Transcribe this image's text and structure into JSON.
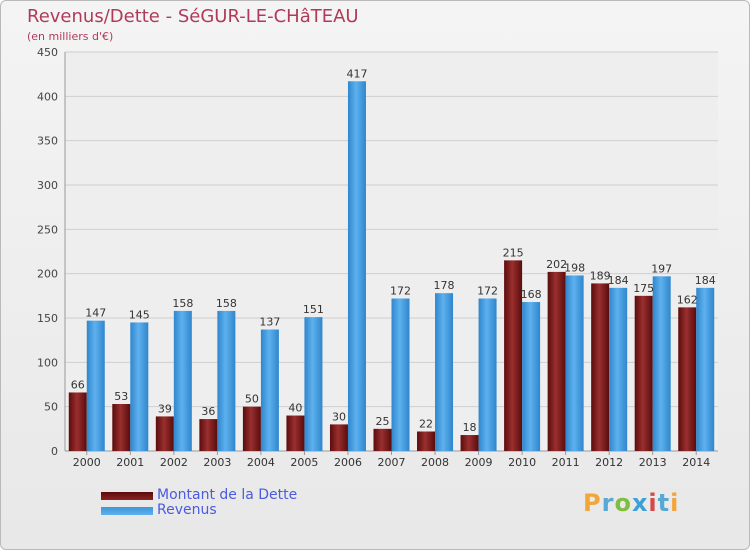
{
  "header": {
    "title": "Revenus/Dette - SéGUR-LE-CHâTEAU",
    "subtitle": "(en milliers d'€)"
  },
  "legend": {
    "dette_label": "Montant de la Dette",
    "revenus_label": "Revenus"
  },
  "colors": {
    "dette": "#7a1a1a",
    "revenus": "#4a9fdf",
    "title": "#b03a5b",
    "legend_text": "#4a5be0"
  },
  "logo": {
    "letters": [
      "P",
      "r",
      "o",
      "x",
      "i",
      "t",
      "i"
    ]
  },
  "chart_data": {
    "type": "bar",
    "title": "Revenus/Dette - SéGUR-LE-CHâTEAU",
    "subtitle": "(en milliers d'€)",
    "xlabel": "",
    "ylabel": "",
    "ylim": [
      0,
      450
    ],
    "yticks": [
      0,
      50,
      100,
      150,
      200,
      250,
      300,
      350,
      400,
      450
    ],
    "grid": true,
    "legend_position": "bottom-left",
    "categories": [
      "2000",
      "2001",
      "2002",
      "2003",
      "2004",
      "2005",
      "2006",
      "2007",
      "2008",
      "2009",
      "2010",
      "2011",
      "2012",
      "2013",
      "2014"
    ],
    "series": [
      {
        "name": "Montant de la Dette",
        "values": [
          66,
          53,
          39,
          36,
          50,
          40,
          30,
          25,
          22,
          18,
          215,
          202,
          189,
          175,
          162
        ]
      },
      {
        "name": "Revenus",
        "values": [
          147,
          145,
          158,
          158,
          137,
          151,
          417,
          172,
          178,
          172,
          168,
          198,
          184,
          197,
          184
        ]
      }
    ]
  }
}
